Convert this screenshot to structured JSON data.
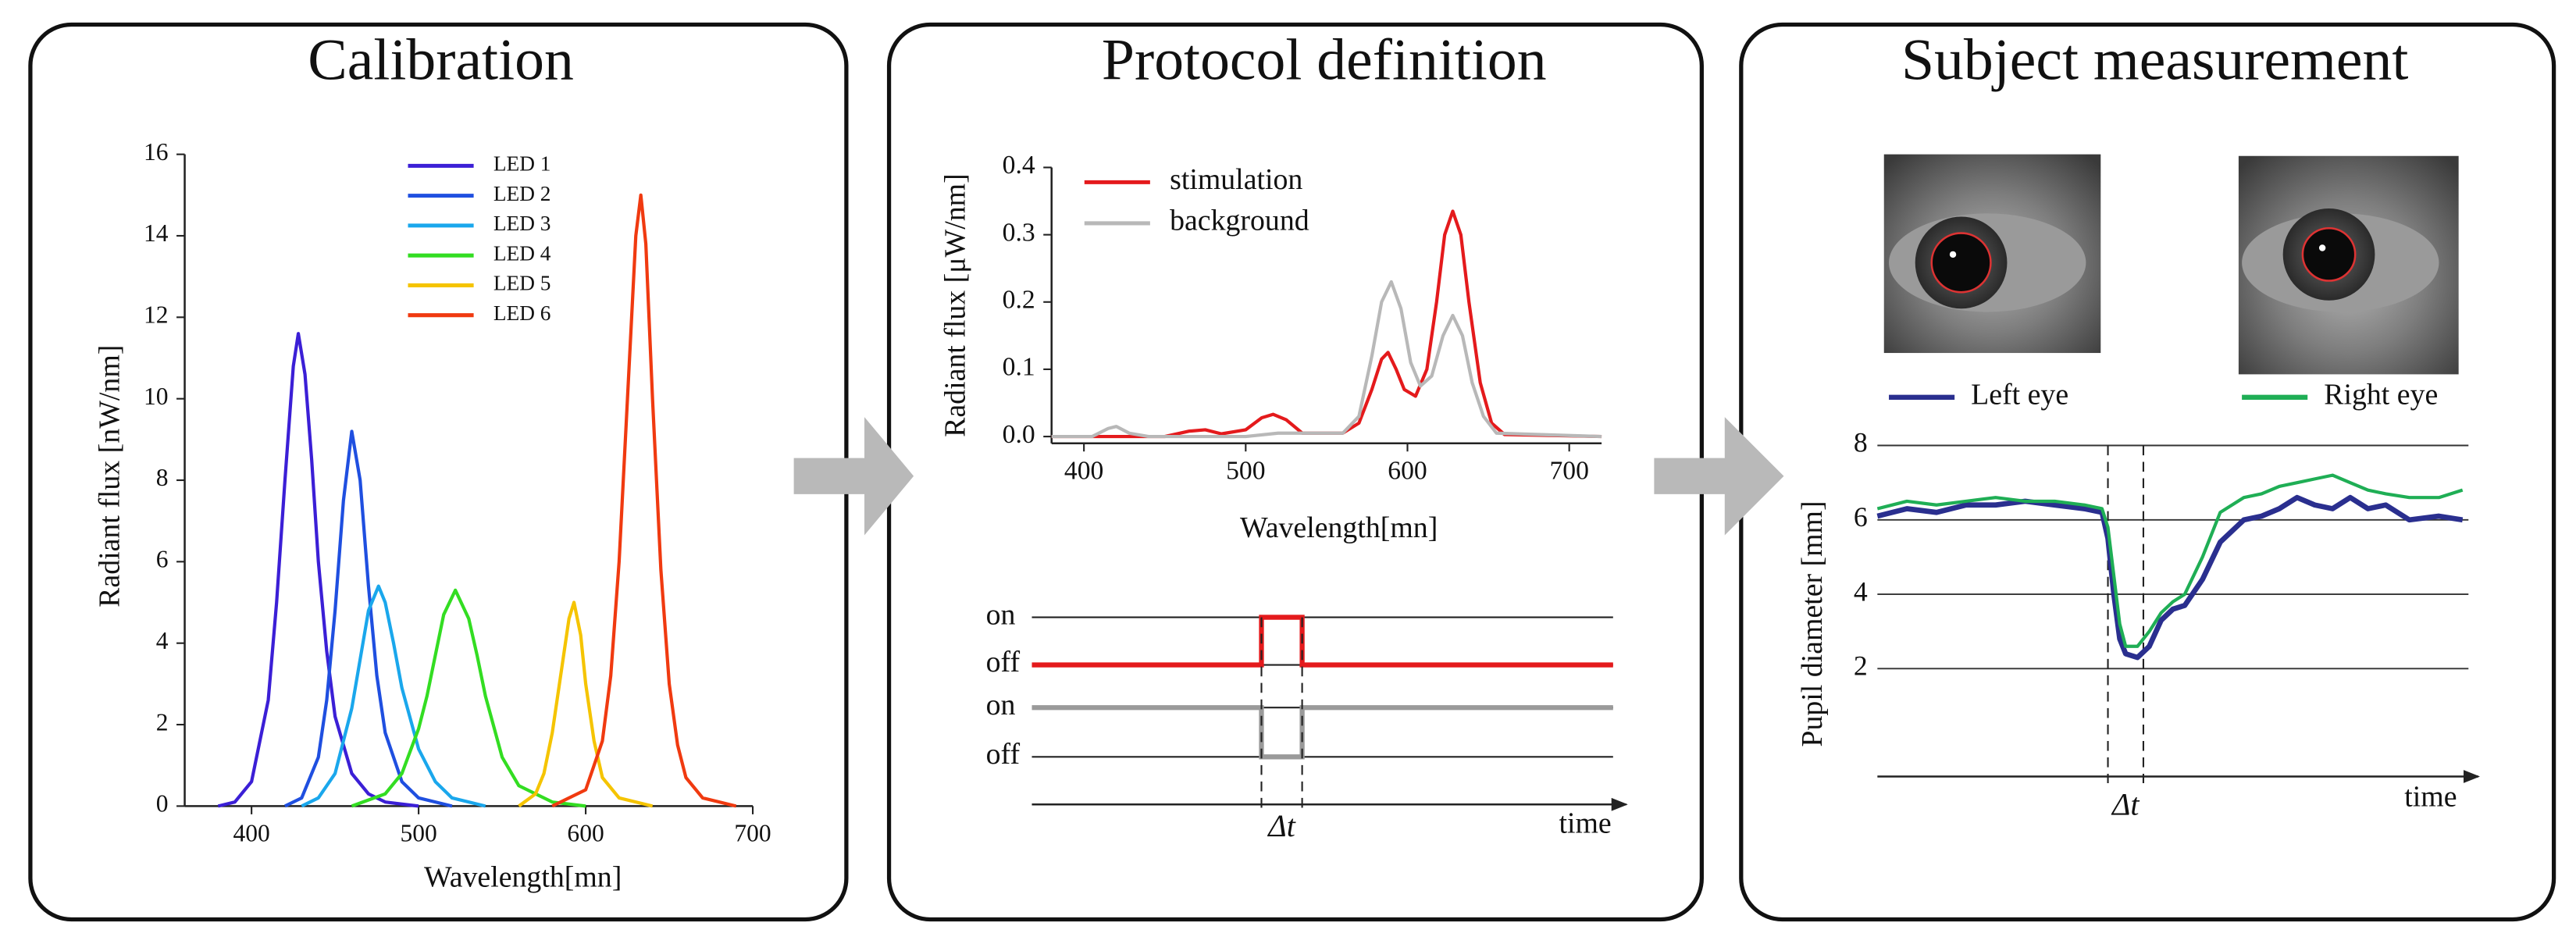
{
  "panels": [
    {
      "title": "Calibration"
    },
    {
      "title": "Protocol definition"
    },
    {
      "title": "Subject measurement"
    }
  ],
  "chart_data": [
    {
      "type": "line",
      "xlabel": "Wavelength[mn]",
      "ylabel": "Radiant flux [nW/nm]",
      "xlim": [
        360,
        700
      ],
      "ylim": [
        0,
        16
      ],
      "xticks": [
        400,
        500,
        600,
        700
      ],
      "yticks": [
        0,
        2,
        4,
        6,
        8,
        10,
        12,
        14,
        16
      ],
      "series": [
        {
          "name": "LED 1",
          "color": "#3b1fd6",
          "x": [
            380,
            390,
            400,
            410,
            415,
            420,
            425,
            428,
            432,
            436,
            440,
            445,
            450,
            460,
            470,
            480,
            500
          ],
          "values": [
            0,
            0.1,
            0.6,
            2.6,
            5.0,
            8.0,
            10.8,
            11.6,
            10.6,
            8.5,
            6.0,
            3.8,
            2.2,
            0.8,
            0.3,
            0.1,
            0
          ]
        },
        {
          "name": "LED 2",
          "color": "#1f4fe0",
          "x": [
            420,
            430,
            440,
            445,
            450,
            455,
            460,
            465,
            470,
            475,
            480,
            490,
            500,
            520
          ],
          "values": [
            0,
            0.2,
            1.2,
            2.6,
            4.8,
            7.5,
            9.2,
            8.0,
            5.4,
            3.2,
            1.8,
            0.6,
            0.2,
            0
          ]
        },
        {
          "name": "LED 3",
          "color": "#1aa7ec",
          "x": [
            430,
            440,
            450,
            460,
            465,
            470,
            476,
            480,
            485,
            490,
            500,
            510,
            520,
            540
          ],
          "values": [
            0,
            0.2,
            0.8,
            2.4,
            3.6,
            4.8,
            5.4,
            5.0,
            4.0,
            2.9,
            1.4,
            0.6,
            0.2,
            0
          ]
        },
        {
          "name": "LED 4",
          "color": "#33dd22",
          "x": [
            460,
            480,
            490,
            500,
            505,
            510,
            515,
            522,
            530,
            535,
            540,
            550,
            560,
            580,
            600
          ],
          "values": [
            0,
            0.3,
            0.8,
            1.9,
            2.7,
            3.7,
            4.7,
            5.3,
            4.6,
            3.7,
            2.7,
            1.2,
            0.5,
            0.1,
            0
          ]
        },
        {
          "name": "LED 5",
          "color": "#f5c400",
          "x": [
            560,
            570,
            575,
            580,
            585,
            590,
            593,
            597,
            600,
            605,
            610,
            620,
            640
          ],
          "values": [
            0,
            0.3,
            0.8,
            1.8,
            3.2,
            4.6,
            5.0,
            4.2,
            3.0,
            1.6,
            0.7,
            0.2,
            0
          ]
        },
        {
          "name": "LED 6",
          "color": "#f03a10",
          "x": [
            580,
            600,
            610,
            615,
            620,
            625,
            630,
            633,
            636,
            640,
            645,
            650,
            655,
            660,
            670,
            690
          ],
          "values": [
            0,
            0.4,
            1.6,
            3.2,
            6.0,
            10.0,
            14.0,
            15.0,
            13.8,
            10.0,
            5.8,
            3.0,
            1.5,
            0.7,
            0.2,
            0
          ]
        }
      ]
    },
    {
      "type": "line",
      "xlabel": "Wavelength[mn]",
      "ylabel": "Radiant flux [μW/nm]",
      "xlim": [
        380,
        720
      ],
      "ylim": [
        -0.01,
        0.4
      ],
      "xticks": [
        400,
        500,
        600,
        700
      ],
      "yticks": [
        {
          "value": 0,
          "label": "0.0"
        },
        0.1,
        0.2,
        0.3,
        0.4
      ],
      "series": [
        {
          "name": "stimulation",
          "color": "#e41a1c",
          "x": [
            380,
            450,
            465,
            475,
            485,
            500,
            510,
            517,
            525,
            535,
            560,
            570,
            578,
            584,
            588,
            593,
            598,
            605,
            612,
            618,
            623,
            628,
            633,
            638,
            645,
            652,
            660,
            720
          ],
          "values": [
            0,
            0,
            0.008,
            0.01,
            0.004,
            0.01,
            0.028,
            0.033,
            0.025,
            0.005,
            0.005,
            0.02,
            0.07,
            0.115,
            0.125,
            0.1,
            0.07,
            0.06,
            0.1,
            0.2,
            0.3,
            0.335,
            0.3,
            0.2,
            0.08,
            0.02,
            0.003,
            0
          ]
        },
        {
          "name": "background",
          "color": "#b8b8b8",
          "x": [
            380,
            405,
            415,
            420,
            428,
            440,
            500,
            520,
            560,
            570,
            578,
            584,
            590,
            596,
            602,
            608,
            615,
            622,
            628,
            634,
            640,
            647,
            655,
            720
          ],
          "values": [
            0,
            0,
            0.012,
            0.015,
            0.005,
            0,
            0,
            0.005,
            0.005,
            0.03,
            0.12,
            0.2,
            0.23,
            0.19,
            0.11,
            0.075,
            0.09,
            0.15,
            0.18,
            0.15,
            0.08,
            0.03,
            0.005,
            0
          ]
        }
      ]
    },
    {
      "type": "timing",
      "xlabel": "time",
      "annotation": "Δt",
      "xlim": [
        0,
        1
      ],
      "span": [
        0.395,
        0.465
      ],
      "series": [
        {
          "color": "#e41a1c",
          "levels": [
            "on",
            "off"
          ],
          "x": [
            0,
            0.395,
            0.395,
            0.465,
            0.465,
            1
          ],
          "values": [
            0,
            0,
            1,
            1,
            0,
            0
          ]
        },
        {
          "color": "#9a9a9a",
          "levels": [
            "on",
            "off"
          ],
          "x": [
            0,
            0.395,
            0.395,
            0.465,
            0.465,
            1
          ],
          "values": [
            1,
            1,
            0,
            0,
            1,
            1
          ]
        }
      ]
    },
    {
      "type": "line",
      "xlabel": "time",
      "ylabel": "Pupil diameter [mm]",
      "annotation": "Δt",
      "span": [
        0.39,
        0.45
      ],
      "xlim": [
        0,
        1
      ],
      "ylim": [
        -0.9,
        8.5
      ],
      "yticks": [
        2,
        4,
        6,
        8
      ],
      "grid": true,
      "series": [
        {
          "name": "Left eye",
          "color": "#2a2f8f",
          "x": [
            0,
            0.05,
            0.1,
            0.15,
            0.2,
            0.25,
            0.3,
            0.35,
            0.38,
            0.39,
            0.4,
            0.41,
            0.42,
            0.44,
            0.46,
            0.48,
            0.5,
            0.52,
            0.55,
            0.58,
            0.62,
            0.65,
            0.68,
            0.71,
            0.74,
            0.77,
            0.8,
            0.83,
            0.86,
            0.9,
            0.95,
            0.99
          ],
          "values": [
            6.1,
            6.3,
            6.2,
            6.4,
            6.4,
            6.5,
            6.4,
            6.3,
            6.2,
            5.5,
            4.0,
            2.8,
            2.4,
            2.3,
            2.6,
            3.3,
            3.6,
            3.7,
            4.4,
            5.4,
            6.0,
            6.1,
            6.3,
            6.6,
            6.4,
            6.3,
            6.6,
            6.3,
            6.4,
            6.0,
            6.1,
            6.0
          ]
        },
        {
          "name": "Right eye",
          "color": "#1fae55",
          "x": [
            0,
            0.05,
            0.1,
            0.15,
            0.2,
            0.25,
            0.3,
            0.35,
            0.38,
            0.39,
            0.4,
            0.41,
            0.42,
            0.44,
            0.46,
            0.48,
            0.5,
            0.52,
            0.55,
            0.58,
            0.62,
            0.65,
            0.68,
            0.71,
            0.74,
            0.77,
            0.8,
            0.83,
            0.86,
            0.9,
            0.95,
            0.99
          ],
          "values": [
            6.3,
            6.5,
            6.4,
            6.5,
            6.6,
            6.5,
            6.5,
            6.4,
            6.3,
            5.8,
            4.5,
            3.2,
            2.6,
            2.6,
            3.0,
            3.5,
            3.8,
            4.0,
            5.0,
            6.2,
            6.6,
            6.7,
            6.9,
            7.0,
            7.1,
            7.2,
            7.0,
            6.8,
            6.7,
            6.6,
            6.6,
            6.8
          ]
        }
      ]
    }
  ]
}
